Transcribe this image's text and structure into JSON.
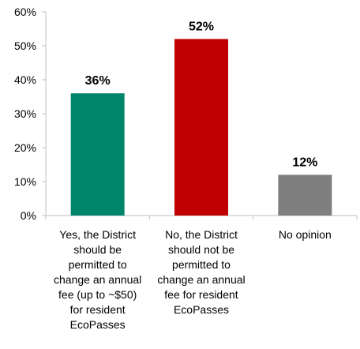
{
  "chart_data": {
    "type": "bar",
    "categories": [
      [
        "Yes, the District",
        "should be",
        "permitted to",
        "change an annual",
        "fee (up to ~$50)",
        "for resident",
        "EcoPasses"
      ],
      [
        "No, the District",
        "should not be",
        "permitted to",
        "change an annual",
        "fee for resident",
        "EcoPasses"
      ],
      [
        "No opinion"
      ]
    ],
    "values": [
      36,
      52,
      12
    ],
    "data_labels": [
      "36%",
      "52%",
      "12%"
    ],
    "colors": [
      "#00856A",
      "#C00000",
      "#7F7F7F"
    ],
    "yticks": [
      "0%",
      "10%",
      "20%",
      "30%",
      "40%",
      "50%",
      "60%"
    ],
    "ylim": [
      0,
      60
    ],
    "grid": false,
    "legend": "none",
    "title": "",
    "xlabel": "",
    "ylabel": ""
  }
}
